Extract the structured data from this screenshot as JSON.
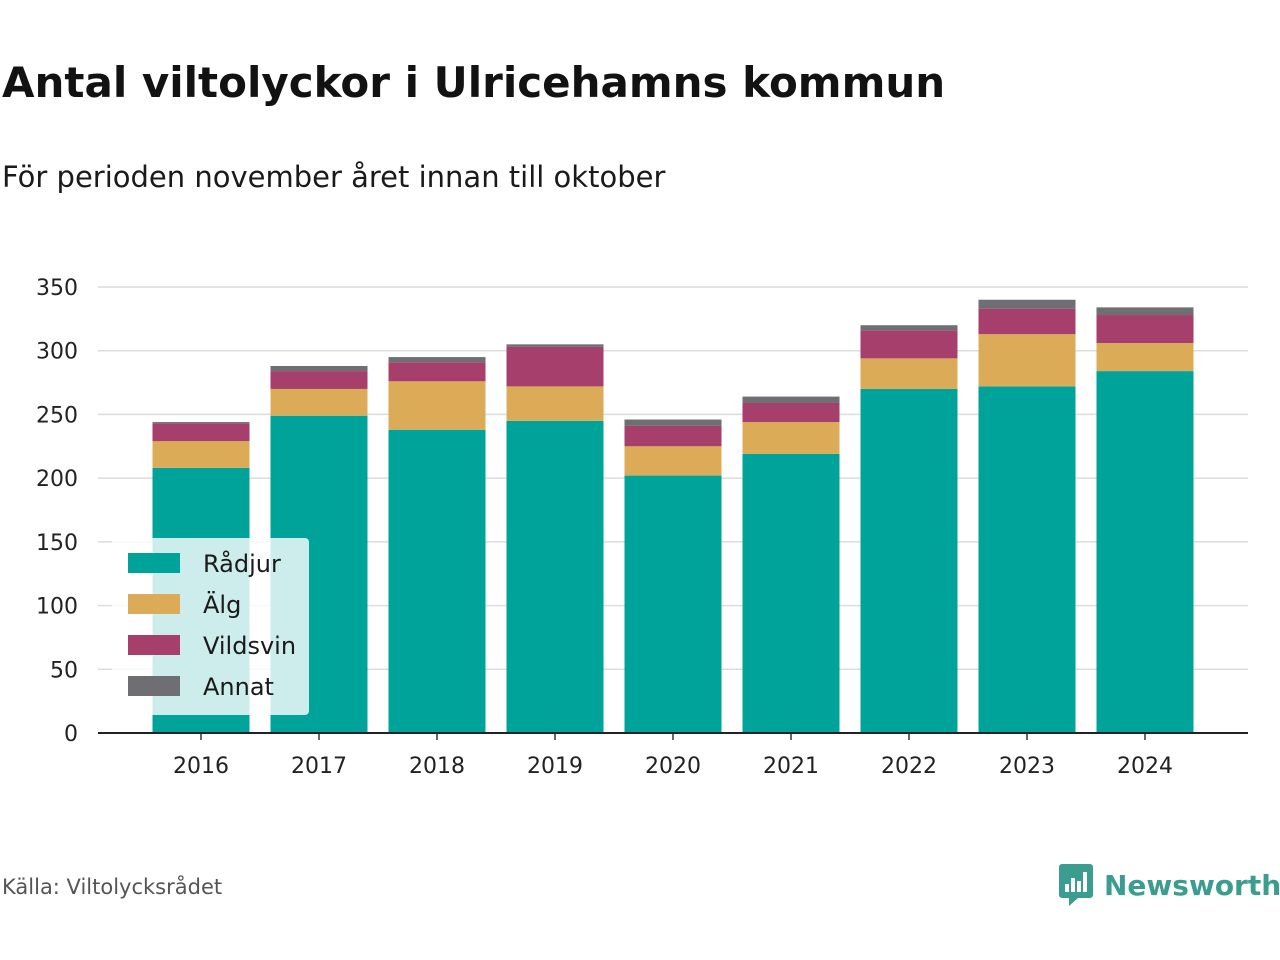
{
  "title": "Antal viltolyckor i Ulricehamns kommun",
  "subtitle": "För perioden november året innan till oktober",
  "source": "Källa: Viltolycksrådet",
  "brand": {
    "name": "Newsworthy",
    "icon": "newsworthy-logo-icon",
    "color": "#3a9d8f"
  },
  "chart_data": {
    "type": "bar",
    "stacked": true,
    "categories": [
      "2016",
      "2017",
      "2018",
      "2019",
      "2020",
      "2021",
      "2022",
      "2023",
      "2024"
    ],
    "series": [
      {
        "name": "Rådjur",
        "color": "#00a39a",
        "values": [
          208,
          249,
          238,
          245,
          202,
          219,
          270,
          272,
          284
        ]
      },
      {
        "name": "Älg",
        "color": "#dcab58",
        "values": [
          21,
          21,
          38,
          27,
          23,
          25,
          24,
          41,
          22
        ]
      },
      {
        "name": "Vildsvin",
        "color": "#a63f6b",
        "values": [
          14,
          14,
          15,
          31,
          16,
          15,
          22,
          20,
          22
        ]
      },
      {
        "name": "Annat",
        "color": "#6e6e73",
        "values": [
          1,
          4,
          4,
          2,
          5,
          5,
          4,
          7,
          6
        ]
      }
    ],
    "yticks": [
      0,
      50,
      100,
      150,
      200,
      250,
      300,
      350
    ],
    "ylim": [
      0,
      350
    ],
    "grid": true,
    "legend_position": "bottom-left"
  }
}
